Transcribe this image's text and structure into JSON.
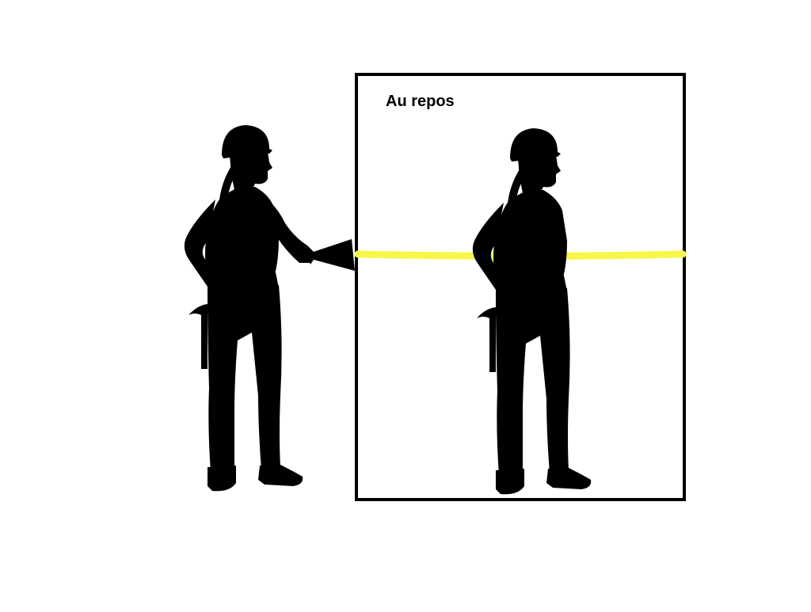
{
  "diagram": {
    "caption": "Au repos",
    "colors": {
      "silhouette": "#000000",
      "beam": "#f7f74a",
      "frame": "#000000",
      "background": "#ffffff"
    },
    "figures": [
      {
        "role": "worker-with-flashlight",
        "icon": "worker-silhouette-icon"
      },
      {
        "role": "worker-at-rest",
        "icon": "worker-silhouette-icon"
      }
    ]
  }
}
